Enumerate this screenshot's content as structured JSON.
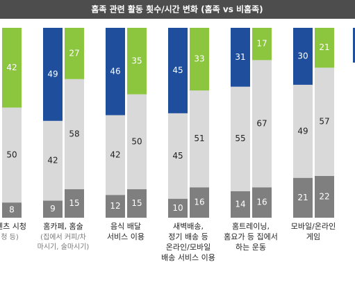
{
  "chart_data": {
    "type": "stacked-bar",
    "title": "홈족 관련 활동 횟수/시간 변화 (홈족 vs 비홈족)",
    "ylim": [
      0,
      100
    ],
    "segment_colors": [
      "#7f7f7f",
      "#d9d9d9"
    ],
    "groups": [
      {
        "lines": [
          "텐츠 시청"
        ],
        "note_lines": [
          "청 등)"
        ],
        "bars": [
          {
            "top_color": "#8cc63f",
            "values": [
              8,
              50,
              42
            ]
          }
        ]
      },
      {
        "lines": [
          "홈카페, 홈술"
        ],
        "note_lines": [
          "(집에서 커피/차",
          "마시기, 술마시기)"
        ],
        "bars": [
          {
            "top_color": "#1f4e9c",
            "values": [
              9,
              42,
              49
            ]
          },
          {
            "top_color": "#8cc63f",
            "values": [
              15,
              58,
              27
            ]
          }
        ]
      },
      {
        "lines": [
          "음식 배달",
          "서비스 이용"
        ],
        "note_lines": [],
        "bars": [
          {
            "top_color": "#1f4e9c",
            "values": [
              12,
              42,
              46
            ]
          },
          {
            "top_color": "#8cc63f",
            "values": [
              15,
              50,
              35
            ]
          }
        ]
      },
      {
        "lines": [
          "새벽배송,",
          "정기 배송 등",
          "온라인/모바일",
          "배송 서비스 이용"
        ],
        "note_lines": [],
        "bars": [
          {
            "top_color": "#1f4e9c",
            "values": [
              10,
              45,
              45
            ]
          },
          {
            "top_color": "#8cc63f",
            "values": [
              16,
              51,
              33
            ]
          }
        ]
      },
      {
        "lines": [
          "홈트레이닝,",
          "홈요가 등 집에서",
          "하는 운동"
        ],
        "note_lines": [],
        "bars": [
          {
            "top_color": "#1f4e9c",
            "values": [
              14,
              55,
              31
            ]
          },
          {
            "top_color": "#8cc63f",
            "values": [
              16,
              67,
              17
            ]
          }
        ]
      },
      {
        "lines": [
          "모바일/온라인",
          "게임"
        ],
        "note_lines": [],
        "bars": [
          {
            "top_color": "#1f4e9c",
            "values": [
              21,
              49,
              30
            ]
          },
          {
            "top_color": "#8cc63f",
            "values": [
              22,
              57,
              21
            ]
          }
        ]
      }
    ]
  }
}
